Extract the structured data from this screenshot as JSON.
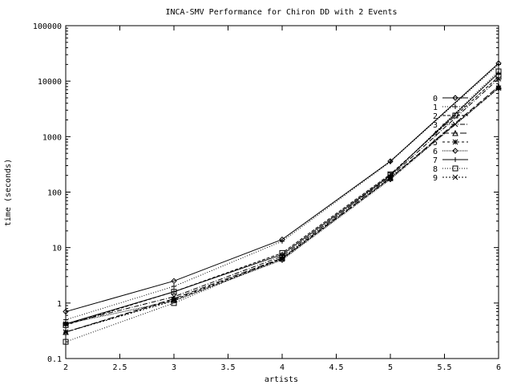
{
  "chart_data": {
    "type": "line",
    "title": "INCA-SMV Performance for Chiron DD with 2 Events",
    "xlabel": "artists",
    "ylabel": "time (seconds)",
    "xlim": [
      2,
      6
    ],
    "ylim": [
      0.1,
      100000
    ],
    "yscale": "log",
    "grid": false,
    "legend_position": "right",
    "x_ticks": [
      {
        "value": 2,
        "label": "2"
      },
      {
        "value": 2.5,
        "label": "2.5"
      },
      {
        "value": 3,
        "label": "3"
      },
      {
        "value": 3.5,
        "label": "3.5"
      },
      {
        "value": 4,
        "label": "4"
      },
      {
        "value": 4.5,
        "label": "4.5"
      },
      {
        "value": 5,
        "label": "5"
      },
      {
        "value": 5.5,
        "label": "5.5"
      },
      {
        "value": 6,
        "label": "6"
      }
    ],
    "y_ticks": [
      {
        "value": 0.1,
        "label": "0.1"
      },
      {
        "value": 1,
        "label": "1"
      },
      {
        "value": 10,
        "label": "10"
      },
      {
        "value": 100,
        "label": "100"
      },
      {
        "value": 1000,
        "label": "1000"
      },
      {
        "value": 10000,
        "label": "10000"
      },
      {
        "value": 100000,
        "label": "100000"
      }
    ],
    "x": [
      2,
      3,
      4,
      5,
      6
    ],
    "series": [
      {
        "name": "0",
        "marker": "diamond",
        "dash": "",
        "values": [
          0.7,
          2.5,
          14,
          360,
          21000
        ]
      },
      {
        "name": "1",
        "marker": "plus",
        "dash": "1,2",
        "values": [
          0.5,
          2.0,
          13,
          350,
          20000
        ]
      },
      {
        "name": "2",
        "marker": "square",
        "dash": "4,2",
        "values": [
          0.4,
          1.6,
          8.0,
          210,
          12000
        ]
      },
      {
        "name": "3",
        "marker": "cross",
        "dash": "6,2,1,2",
        "values": [
          0.42,
          1.3,
          7.0,
          190,
          11000
        ]
      },
      {
        "name": "4",
        "marker": "triangle",
        "dash": "8,3",
        "values": [
          0.3,
          1.2,
          6.5,
          180,
          8000
        ]
      },
      {
        "name": "5",
        "marker": "star",
        "dash": "3,3",
        "values": [
          0.3,
          1.15,
          6.3,
          175,
          7500
        ]
      },
      {
        "name": "6",
        "marker": "diamond",
        "dash": "1,1",
        "values": [
          0.42,
          1.1,
          6.0,
          170,
          7500
        ]
      },
      {
        "name": "7",
        "marker": "plus",
        "dash": "",
        "values": [
          0.42,
          1.6,
          7.5,
          200,
          14000
        ]
      },
      {
        "name": "8",
        "marker": "square",
        "dash": "1,2",
        "values": [
          0.2,
          1.0,
          6.5,
          200,
          15000
        ]
      },
      {
        "name": "9",
        "marker": "cross",
        "dash": "2,2",
        "values": [
          0.3,
          1.1,
          6.2,
          180,
          7500
        ]
      }
    ]
  }
}
